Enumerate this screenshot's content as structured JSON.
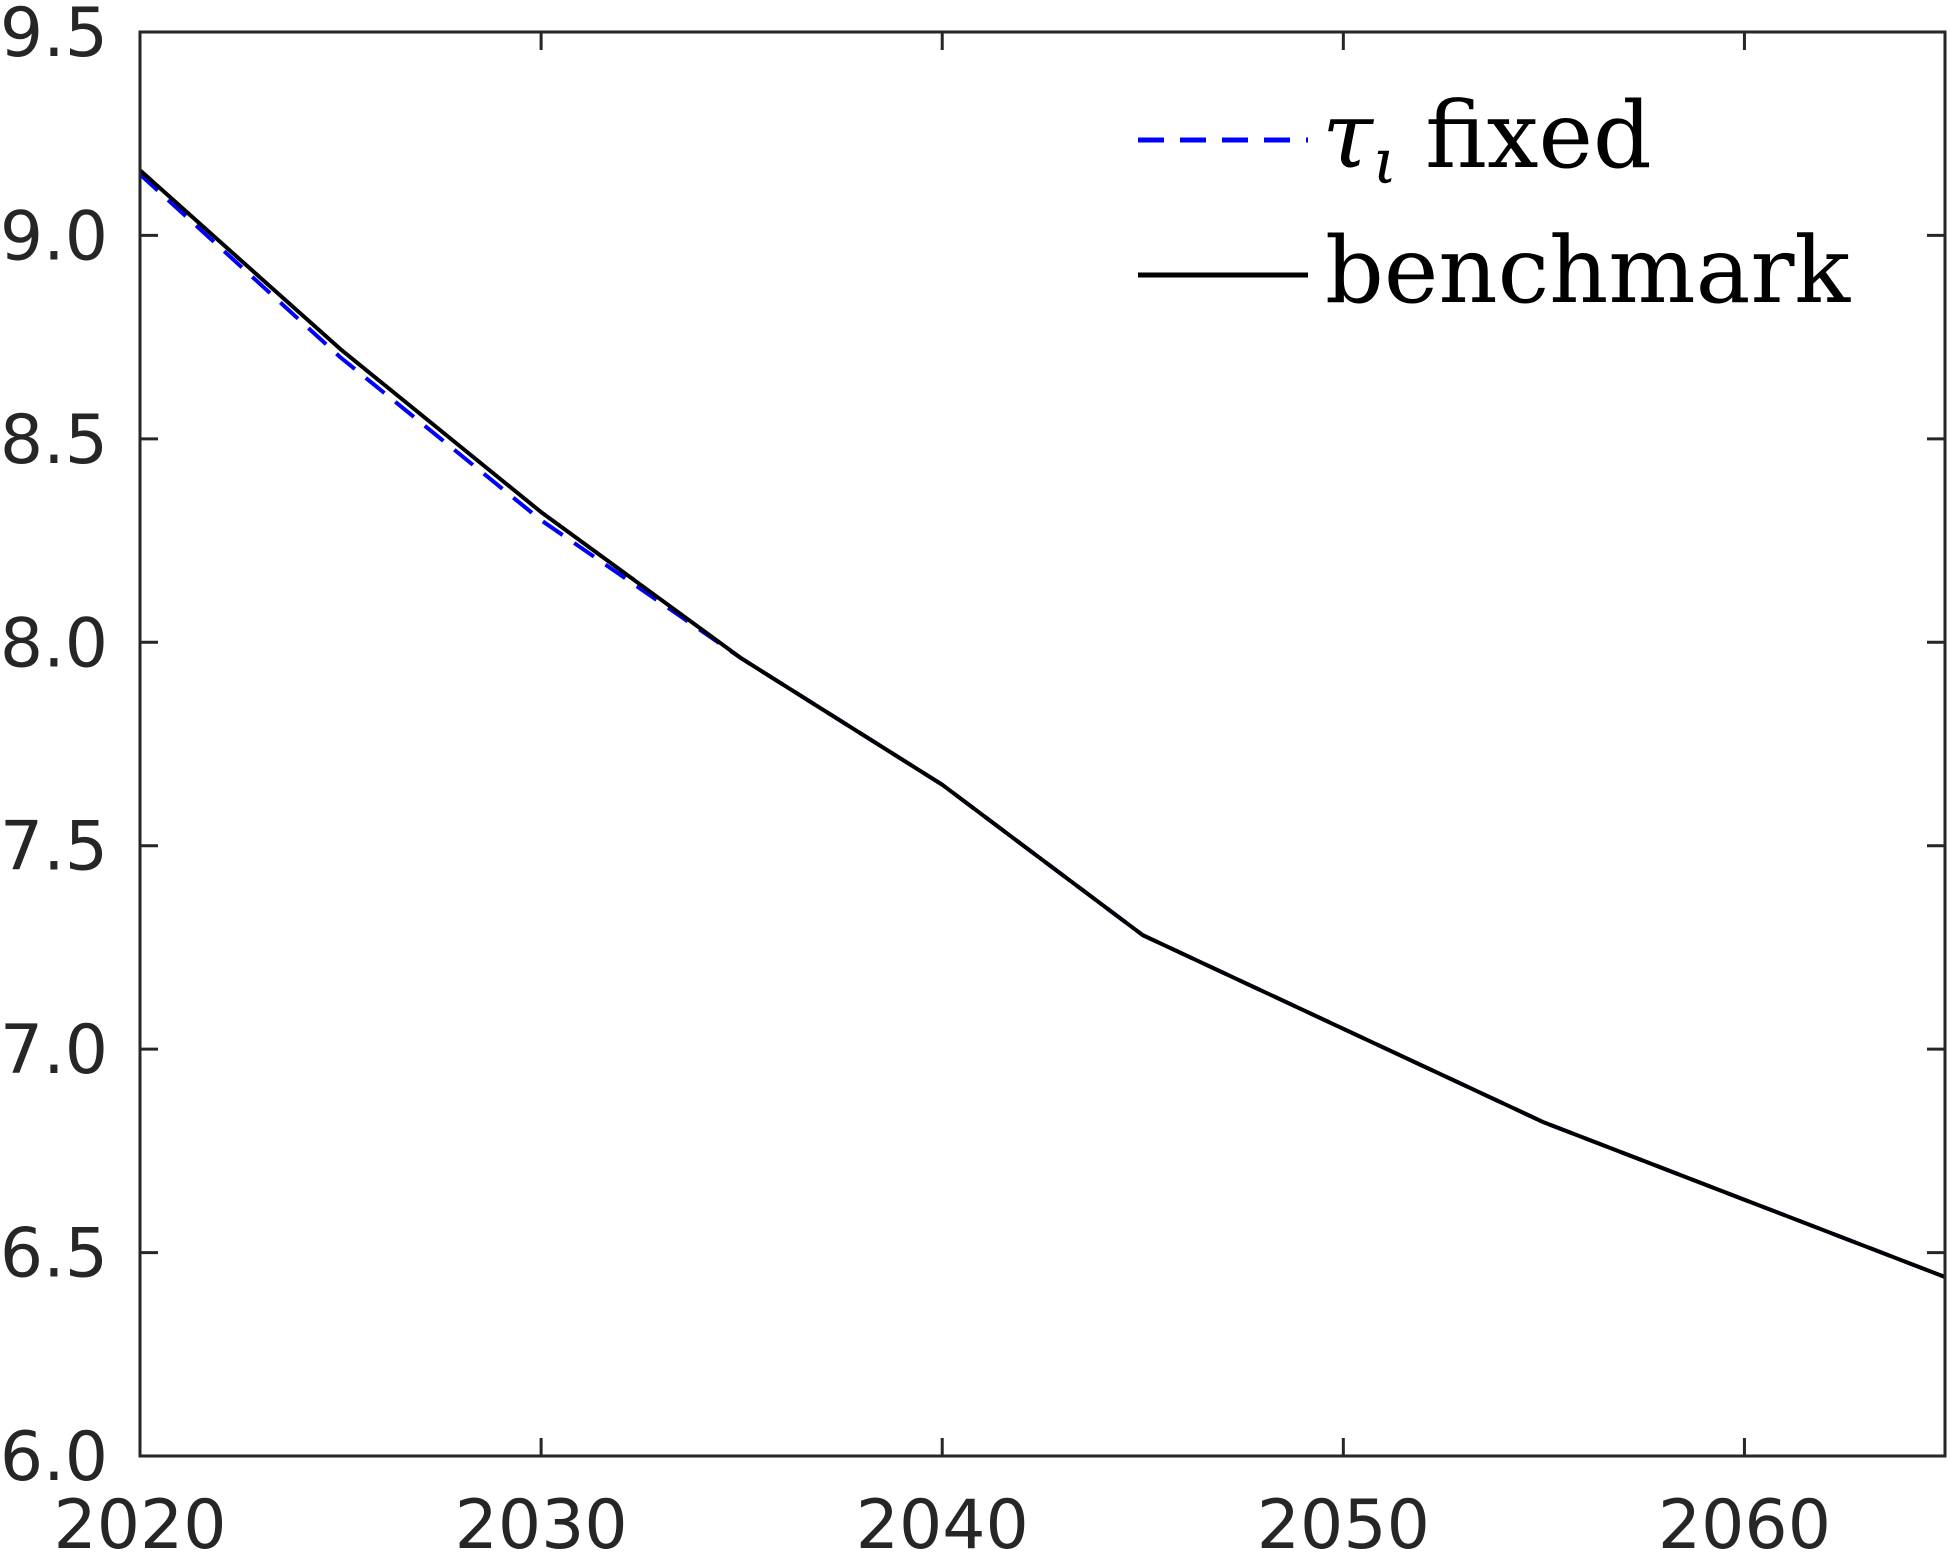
{
  "chart_data": {
    "type": "line",
    "title": "",
    "xlabel": "",
    "ylabel": "",
    "xlim": [
      2020,
      2065
    ],
    "ylim": [
      6.0,
      9.5
    ],
    "xticks": [
      2020,
      2030,
      2040,
      2050,
      2060
    ],
    "yticks": [
      6.0,
      6.5,
      7.0,
      7.5,
      8.0,
      8.5,
      9.0,
      9.5
    ],
    "xtick_labels": [
      "2020",
      "2030",
      "2040",
      "2050",
      "2060"
    ],
    "ytick_labels": [
      "6.0",
      "6.5",
      "7.0",
      "7.5",
      "8.0",
      "8.5",
      "9.0",
      "9.5"
    ],
    "grid": false,
    "legend_position": "top-right",
    "x": [
      2020,
      2025,
      2030,
      2035,
      2040,
      2045,
      2050,
      2055,
      2060,
      2065
    ],
    "series": [
      {
        "name": "τι fixed",
        "name_symbol": "τ",
        "name_subscript": "ι",
        "name_text": "fixed",
        "style": "dashed",
        "color": "#0000ff",
        "values": [
          9.15,
          8.7,
          8.3,
          7.96,
          7.65,
          7.28,
          7.05,
          6.82,
          6.63,
          6.44
        ]
      },
      {
        "name": "benchmark",
        "style": "solid",
        "color": "#000000",
        "values": [
          9.16,
          8.72,
          8.32,
          7.96,
          7.65,
          7.28,
          7.05,
          6.82,
          6.63,
          6.44
        ]
      }
    ]
  }
}
